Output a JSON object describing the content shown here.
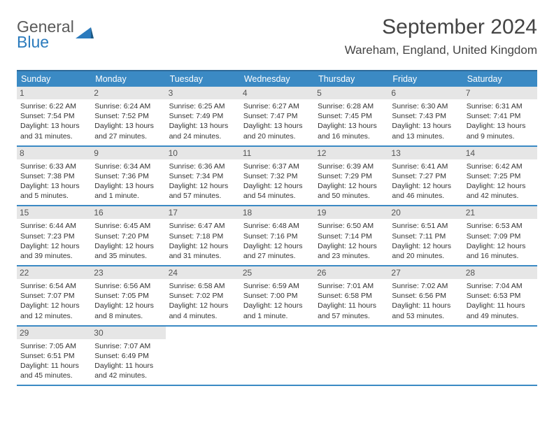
{
  "logo": {
    "line1": "General",
    "line2": "Blue"
  },
  "title": "September 2024",
  "location": "Wareham, England, United Kingdom",
  "header_bg": "#3b8ac4",
  "header_border": "#2e6a99",
  "daynum_bg": "#e6e6e6",
  "weekdays": [
    "Sunday",
    "Monday",
    "Tuesday",
    "Wednesday",
    "Thursday",
    "Friday",
    "Saturday"
  ],
  "weeks": [
    [
      {
        "n": "1",
        "sr": "6:22 AM",
        "ss": "7:54 PM",
        "dl": "13 hours and 31 minutes."
      },
      {
        "n": "2",
        "sr": "6:24 AM",
        "ss": "7:52 PM",
        "dl": "13 hours and 27 minutes."
      },
      {
        "n": "3",
        "sr": "6:25 AM",
        "ss": "7:49 PM",
        "dl": "13 hours and 24 minutes."
      },
      {
        "n": "4",
        "sr": "6:27 AM",
        "ss": "7:47 PM",
        "dl": "13 hours and 20 minutes."
      },
      {
        "n": "5",
        "sr": "6:28 AM",
        "ss": "7:45 PM",
        "dl": "13 hours and 16 minutes."
      },
      {
        "n": "6",
        "sr": "6:30 AM",
        "ss": "7:43 PM",
        "dl": "13 hours and 13 minutes."
      },
      {
        "n": "7",
        "sr": "6:31 AM",
        "ss": "7:41 PM",
        "dl": "13 hours and 9 minutes."
      }
    ],
    [
      {
        "n": "8",
        "sr": "6:33 AM",
        "ss": "7:38 PM",
        "dl": "13 hours and 5 minutes."
      },
      {
        "n": "9",
        "sr": "6:34 AM",
        "ss": "7:36 PM",
        "dl": "13 hours and 1 minute."
      },
      {
        "n": "10",
        "sr": "6:36 AM",
        "ss": "7:34 PM",
        "dl": "12 hours and 57 minutes."
      },
      {
        "n": "11",
        "sr": "6:37 AM",
        "ss": "7:32 PM",
        "dl": "12 hours and 54 minutes."
      },
      {
        "n": "12",
        "sr": "6:39 AM",
        "ss": "7:29 PM",
        "dl": "12 hours and 50 minutes."
      },
      {
        "n": "13",
        "sr": "6:41 AM",
        "ss": "7:27 PM",
        "dl": "12 hours and 46 minutes."
      },
      {
        "n": "14",
        "sr": "6:42 AM",
        "ss": "7:25 PM",
        "dl": "12 hours and 42 minutes."
      }
    ],
    [
      {
        "n": "15",
        "sr": "6:44 AM",
        "ss": "7:23 PM",
        "dl": "12 hours and 39 minutes."
      },
      {
        "n": "16",
        "sr": "6:45 AM",
        "ss": "7:20 PM",
        "dl": "12 hours and 35 minutes."
      },
      {
        "n": "17",
        "sr": "6:47 AM",
        "ss": "7:18 PM",
        "dl": "12 hours and 31 minutes."
      },
      {
        "n": "18",
        "sr": "6:48 AM",
        "ss": "7:16 PM",
        "dl": "12 hours and 27 minutes."
      },
      {
        "n": "19",
        "sr": "6:50 AM",
        "ss": "7:14 PM",
        "dl": "12 hours and 23 minutes."
      },
      {
        "n": "20",
        "sr": "6:51 AM",
        "ss": "7:11 PM",
        "dl": "12 hours and 20 minutes."
      },
      {
        "n": "21",
        "sr": "6:53 AM",
        "ss": "7:09 PM",
        "dl": "12 hours and 16 minutes."
      }
    ],
    [
      {
        "n": "22",
        "sr": "6:54 AM",
        "ss": "7:07 PM",
        "dl": "12 hours and 12 minutes."
      },
      {
        "n": "23",
        "sr": "6:56 AM",
        "ss": "7:05 PM",
        "dl": "12 hours and 8 minutes."
      },
      {
        "n": "24",
        "sr": "6:58 AM",
        "ss": "7:02 PM",
        "dl": "12 hours and 4 minutes."
      },
      {
        "n": "25",
        "sr": "6:59 AM",
        "ss": "7:00 PM",
        "dl": "12 hours and 1 minute."
      },
      {
        "n": "26",
        "sr": "7:01 AM",
        "ss": "6:58 PM",
        "dl": "11 hours and 57 minutes."
      },
      {
        "n": "27",
        "sr": "7:02 AM",
        "ss": "6:56 PM",
        "dl": "11 hours and 53 minutes."
      },
      {
        "n": "28",
        "sr": "7:04 AM",
        "ss": "6:53 PM",
        "dl": "11 hours and 49 minutes."
      }
    ],
    [
      {
        "n": "29",
        "sr": "7:05 AM",
        "ss": "6:51 PM",
        "dl": "11 hours and 45 minutes."
      },
      {
        "n": "30",
        "sr": "7:07 AM",
        "ss": "6:49 PM",
        "dl": "11 hours and 42 minutes."
      },
      null,
      null,
      null,
      null,
      null
    ]
  ]
}
